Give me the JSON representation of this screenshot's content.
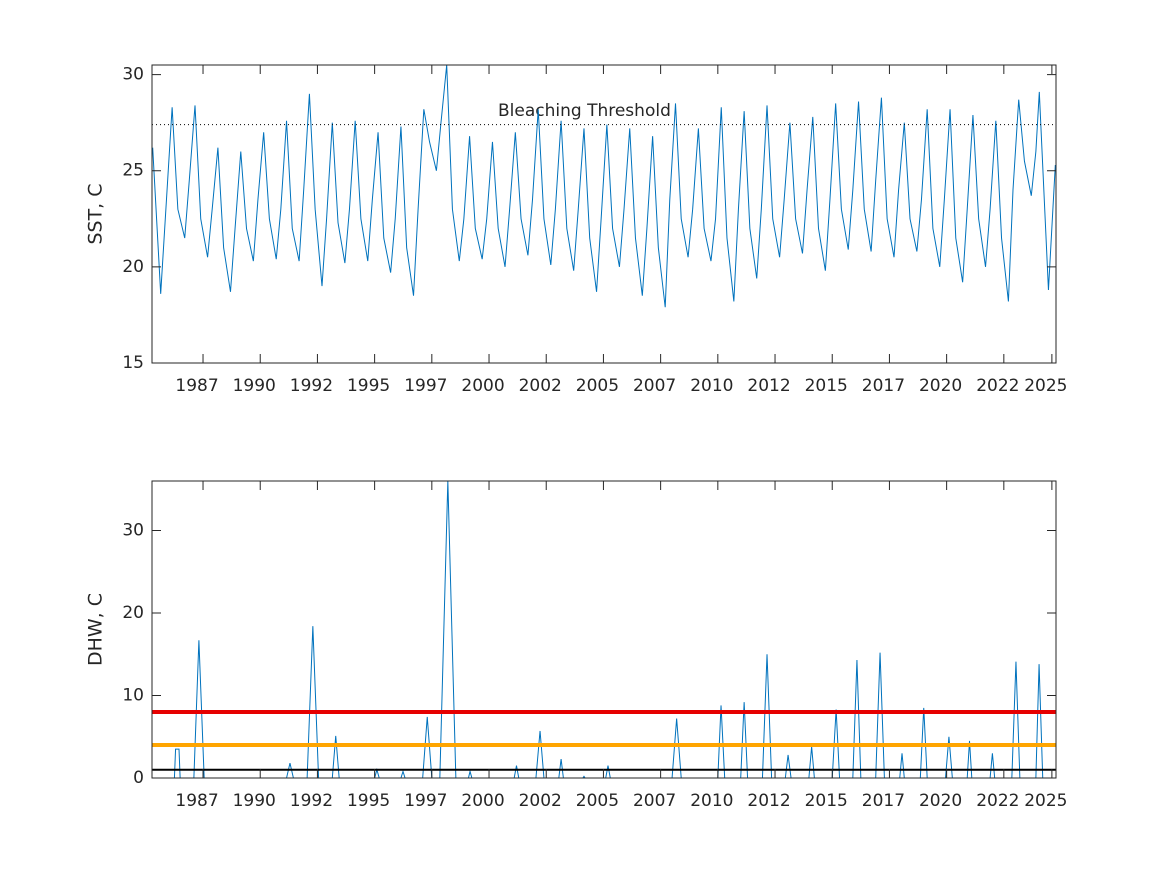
{
  "chart_data": [
    {
      "type": "line",
      "ylabel": "SST, C",
      "color": "#0072BD",
      "annotation": "Bleaching Threshold",
      "xlim": [
        1985.27,
        2024.78
      ],
      "ylim": [
        15,
        30.5
      ],
      "yticks": [
        15,
        20,
        25,
        30
      ],
      "xticks": [
        {
          "value": 1987.5,
          "label": "1987"
        },
        1990,
        {
          "value": 1992.5,
          "label": "1992"
        },
        1995,
        {
          "value": 1997.5,
          "label": "1997"
        },
        2000,
        {
          "value": 2002.5,
          "label": "2002"
        },
        2005,
        {
          "value": 2007.5,
          "label": "2007"
        },
        2010,
        {
          "value": 2012.5,
          "label": "2012"
        },
        2015,
        {
          "value": 2017.5,
          "label": "2017"
        },
        2020,
        {
          "value": 2022.5,
          "label": "2022"
        },
        {
          "value": 2024.6,
          "label": "2025"
        }
      ],
      "hlines": [
        {
          "y": 27.4,
          "color": "#000000",
          "style": "dotted",
          "linewidth": 1
        }
      ],
      "x": [
        1985.3,
        1985.65,
        1986.15,
        1986.4,
        1986.7,
        1986.9,
        1987.15,
        1987.4,
        1987.7,
        1987.9,
        1988.15,
        1988.4,
        1988.7,
        1988.9,
        1989.15,
        1989.4,
        1989.7,
        1989.9,
        1990.15,
        1990.4,
        1990.7,
        1990.9,
        1991.15,
        1991.4,
        1991.7,
        1991.9,
        1992.15,
        1992.4,
        1992.7,
        1992.9,
        1993.15,
        1993.4,
        1993.7,
        1993.9,
        1994.15,
        1994.4,
        1994.7,
        1994.9,
        1995.15,
        1995.4,
        1995.7,
        1995.9,
        1996.15,
        1996.4,
        1996.7,
        1996.9,
        1997.15,
        1997.4,
        1997.7,
        1997.9,
        1998.15,
        1998.4,
        1998.7,
        1998.9,
        1999.15,
        1999.4,
        1999.7,
        1999.9,
        2000.15,
        2000.4,
        2000.7,
        2000.9,
        2001.15,
        2001.4,
        2001.7,
        2001.9,
        2002.15,
        2002.4,
        2002.7,
        2002.9,
        2003.15,
        2003.4,
        2003.7,
        2003.9,
        2004.15,
        2004.4,
        2004.7,
        2004.9,
        2005.15,
        2005.4,
        2005.7,
        2005.9,
        2006.15,
        2006.4,
        2006.7,
        2006.9,
        2007.15,
        2007.4,
        2007.7,
        2007.9,
        2008.15,
        2008.4,
        2008.7,
        2008.9,
        2009.15,
        2009.4,
        2009.7,
        2009.9,
        2010.15,
        2010.4,
        2010.7,
        2010.9,
        2011.15,
        2011.4,
        2011.7,
        2011.9,
        2012.15,
        2012.4,
        2012.7,
        2012.9,
        2013.15,
        2013.4,
        2013.7,
        2013.9,
        2014.15,
        2014.4,
        2014.7,
        2014.9,
        2015.15,
        2015.4,
        2015.7,
        2015.9,
        2016.15,
        2016.4,
        2016.7,
        2016.9,
        2017.15,
        2017.4,
        2017.7,
        2017.9,
        2018.15,
        2018.4,
        2018.7,
        2018.9,
        2019.15,
        2019.4,
        2019.7,
        2019.9,
        2020.15,
        2020.4,
        2020.7,
        2020.9,
        2021.15,
        2021.4,
        2021.7,
        2021.9,
        2022.15,
        2022.4,
        2022.7,
        2022.9,
        2023.15,
        2023.4,
        2023.7,
        2023.9,
        2024.05,
        2024.45,
        2024.75
      ],
      "values": [
        26.2,
        18.6,
        28.3,
        23.0,
        21.5,
        24.5,
        28.4,
        22.5,
        20.5,
        23.0,
        26.2,
        21.0,
        18.7,
        22.0,
        26.0,
        22.0,
        20.3,
        23.5,
        27.0,
        22.5,
        20.4,
        23.0,
        27.6,
        22.0,
        20.3,
        24.0,
        29.0,
        23.0,
        19.0,
        22.5,
        27.5,
        22.3,
        20.2,
        23.0,
        27.6,
        22.5,
        20.3,
        23.5,
        27.0,
        21.5,
        19.7,
        22.5,
        27.3,
        21.0,
        18.5,
        23.0,
        28.2,
        26.5,
        25.0,
        27.5,
        30.5,
        23.0,
        20.3,
        22.5,
        26.8,
        22.0,
        20.4,
        22.5,
        26.5,
        22.0,
        20.0,
        23.0,
        27.0,
        22.5,
        20.6,
        23.5,
        28.2,
        22.5,
        20.1,
        23.0,
        27.6,
        22.0,
        19.8,
        23.0,
        27.2,
        21.5,
        18.7,
        22.5,
        27.4,
        22.0,
        20.0,
        23.0,
        27.2,
        21.5,
        18.5,
        22.0,
        26.8,
        21.0,
        17.9,
        23.5,
        28.5,
        22.5,
        20.5,
        23.0,
        27.2,
        22.0,
        20.3,
        22.5,
        28.3,
        21.5,
        18.2,
        23.0,
        28.1,
        22.0,
        19.4,
        23.0,
        28.4,
        22.5,
        20.5,
        23.5,
        27.5,
        22.5,
        20.7,
        24.0,
        27.8,
        22.0,
        19.8,
        23.5,
        28.5,
        23.0,
        20.9,
        24.0,
        28.6,
        23.0,
        20.8,
        24.5,
        28.8,
        22.5,
        20.5,
        24.0,
        27.5,
        22.5,
        20.8,
        23.5,
        28.2,
        22.0,
        20.0,
        23.5,
        28.2,
        21.5,
        19.2,
        23.0,
        27.9,
        22.5,
        20.0,
        23.0,
        27.6,
        21.5,
        18.2,
        24.0,
        28.7,
        25.5,
        23.7,
        26.0,
        29.1,
        18.8,
        25.3
      ]
    },
    {
      "type": "line",
      "ylabel": "DHW, C",
      "color": "#0072BD",
      "xlim": [
        1985.27,
        2024.78
      ],
      "ylim": [
        0,
        36
      ],
      "yticks": [
        0,
        10,
        20,
        30
      ],
      "xticks": [
        {
          "value": 1987.5,
          "label": "1987"
        },
        1990,
        {
          "value": 1992.5,
          "label": "1992"
        },
        1995,
        {
          "value": 1997.5,
          "label": "1997"
        },
        2000,
        {
          "value": 2002.5,
          "label": "2002"
        },
        2005,
        {
          "value": 2007.5,
          "label": "2007"
        },
        2010,
        {
          "value": 2012.5,
          "label": "2012"
        },
        2015,
        {
          "value": 2017.5,
          "label": "2017"
        },
        2020,
        {
          "value": 2022.5,
          "label": "2022"
        },
        {
          "value": 2024.6,
          "label": "2025"
        }
      ],
      "hlines": [
        {
          "y": 8,
          "color": "#e60000",
          "style": "solid",
          "linewidth": 4
        },
        {
          "y": 4,
          "color": "#ffa500",
          "style": "solid",
          "linewidth": 4
        },
        {
          "y": 1,
          "color": "#000000",
          "style": "solid",
          "linewidth": 2
        }
      ],
      "x": [
        1985.3,
        1986.25,
        1986.3,
        1986.45,
        1986.5,
        1987.1,
        1987.32,
        1987.55,
        1991.15,
        1991.3,
        1991.45,
        1992.05,
        1992.3,
        1992.55,
        1993.15,
        1993.3,
        1993.45,
        1995.0,
        1995.1,
        1995.2,
        1996.15,
        1996.24,
        1996.33,
        1997.1,
        1997.3,
        1997.5,
        1997.85,
        1998.2,
        1998.55,
        1999.1,
        1999.17,
        1999.25,
        2001.1,
        2001.2,
        2001.3,
        2002.05,
        2002.23,
        2002.4,
        2003.05,
        2003.15,
        2003.25,
        2004.1,
        2004.15,
        2004.2,
        2005.1,
        2005.2,
        2005.3,
        2008.0,
        2008.2,
        2008.4,
        2010.0,
        2010.14,
        2010.3,
        2011.0,
        2011.15,
        2011.3,
        2011.95,
        2012.15,
        2012.35,
        2012.95,
        2013.07,
        2013.2,
        2013.98,
        2014.1,
        2014.22,
        2015.0,
        2015.17,
        2015.32,
        2015.9,
        2016.08,
        2016.25,
        2016.9,
        2017.09,
        2017.28,
        2017.95,
        2018.05,
        2018.15,
        2018.85,
        2019.0,
        2019.15,
        2019.95,
        2020.1,
        2020.25,
        2020.9,
        2021.0,
        2021.1,
        2021.9,
        2022.0,
        2022.1,
        2022.85,
        2023.03,
        2023.2,
        2023.9,
        2024.04,
        2024.2,
        2024.75
      ],
      "values": [
        0,
        0,
        3.5,
        3.5,
        0,
        0,
        16.7,
        0,
        0,
        1.8,
        0,
        0,
        18.4,
        0,
        0,
        5.1,
        0,
        0,
        1,
        0,
        0,
        0.8,
        0,
        0,
        7.4,
        0,
        0,
        36,
        0,
        0,
        0.8,
        0,
        0,
        1.5,
        0,
        0,
        5.7,
        0,
        0,
        2.3,
        0,
        0,
        0.2,
        0,
        0,
        1.5,
        0,
        0,
        7.2,
        0,
        0,
        8.8,
        0,
        0,
        9.2,
        0,
        0,
        15,
        0,
        0,
        2.8,
        0,
        0,
        3.8,
        0,
        0,
        8.3,
        0,
        0,
        14.3,
        0,
        0,
        15.2,
        0,
        0,
        3,
        0,
        0,
        8.5,
        0,
        0,
        5,
        0,
        0,
        4.5,
        0,
        0,
        3,
        0,
        0,
        14.1,
        0,
        0,
        13.8,
        0,
        0
      ]
    }
  ]
}
